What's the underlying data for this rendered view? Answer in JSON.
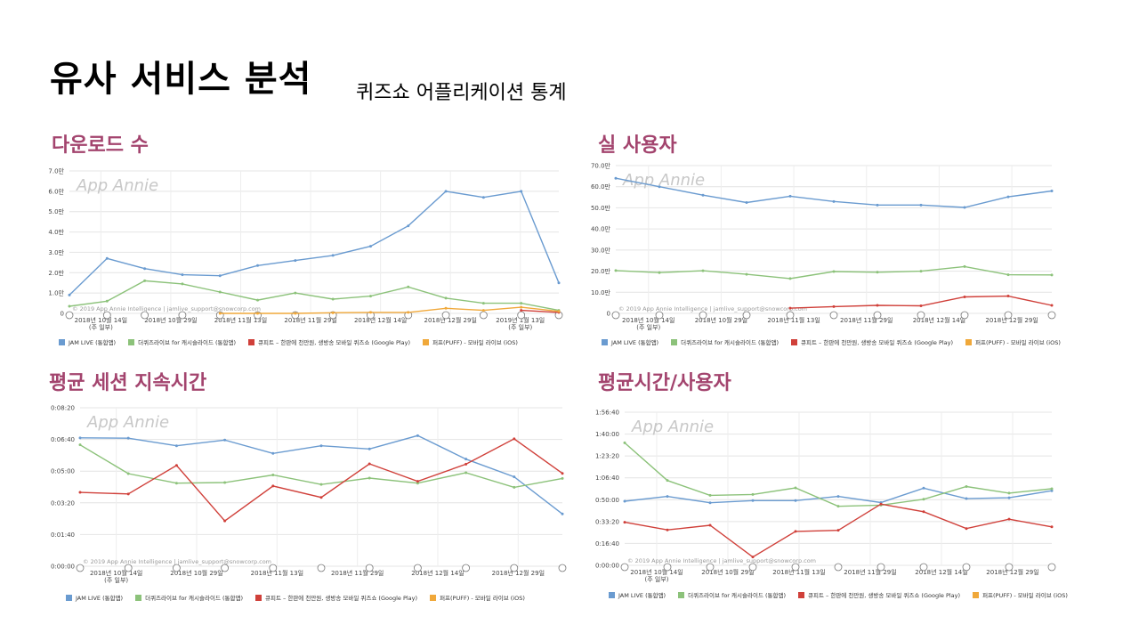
{
  "header": {
    "title": "유사 서비스 분석",
    "subtitle": "퀴즈쇼 어플리케이션 통계"
  },
  "common": {
    "watermark": "App Annie",
    "copyright": "© 2019 App Annie Intelligence | jamlive_support@snowcorp.com",
    "colors": {
      "JAM LIVE (통합앱)": "#6a9bd0",
      "더퀴즈라이브 for 캐시슬라이드 (통합앱)": "#8cc27a",
      "큐피트 – 한판에 천만원, 생방송 모바일 퀴즈쇼 (Google Play)": "#d0403a",
      "퍼프(PUFF) - 모바일 라이브 (iOS)": "#f0a83a"
    }
  },
  "sections": {
    "downloads": "다운로드 수",
    "active_users": "실 사용자",
    "session": "평균 세션 지속시간",
    "time_per_user": "평균시간/사용자"
  },
  "chart_data": [
    {
      "id": "downloads",
      "type": "line",
      "title": "다운로드 수",
      "ylim": [
        0,
        70000
      ],
      "yticks": [
        "0",
        "1.0만",
        "2.0만",
        "3.0만",
        "4.0만",
        "5.0만",
        "6.0만",
        "7.0만"
      ],
      "xticks": [
        "2018년 10월 14일\n(주 일부)",
        "2018년 10월 29일",
        "2018년 11월 13일",
        "2018년 11월 29일",
        "2018년 12월 14일",
        "2018년 12월 29일",
        "2019년 1월 13일\n(주 일부)"
      ],
      "grid": true,
      "legend": "bottom",
      "series": [
        {
          "name": "JAM LIVE (통합앱)",
          "values": [
            9000,
            27000,
            22000,
            19000,
            18500,
            23500,
            26000,
            28500,
            33000,
            43000,
            60000,
            57000,
            60000,
            15000
          ]
        },
        {
          "name": "더퀴즈라이브 for 캐시슬라이드 (통합앱)",
          "values": [
            3500,
            6000,
            16000,
            14500,
            10500,
            6500,
            10000,
            7000,
            8500,
            13000,
            7500,
            5000,
            5000,
            1500
          ]
        },
        {
          "name": "큐피트 – 한판에 천만원, 생방송 모바일 퀴즈쇼 (Google Play)",
          "values": [
            null,
            null,
            null,
            null,
            null,
            null,
            null,
            null,
            null,
            null,
            null,
            null,
            1500,
            500
          ]
        },
        {
          "name": "퍼프(PUFF) - 모바일 라이브 (iOS)",
          "values": [
            null,
            null,
            null,
            null,
            0,
            0,
            0,
            300,
            500,
            500,
            2500,
            1500,
            3000,
            1000
          ]
        }
      ]
    },
    {
      "id": "active_users",
      "type": "line",
      "title": "실 사용자",
      "ylim": [
        0,
        700000
      ],
      "yticks": [
        "0",
        "10.0만",
        "20.0만",
        "30.0만",
        "40.0만",
        "50.0만",
        "60.0만",
        "70.0만"
      ],
      "xticks": [
        "2018년 10월 14일\n(주 일부)",
        "2018년 10월 29일",
        "2018년 11월 13일",
        "2018년 11월 29일",
        "2018년 12월 14일",
        "2018년 12월 29일"
      ],
      "grid": true,
      "legend": "bottom",
      "series": [
        {
          "name": "JAM LIVE (통합앱)",
          "values": [
            640000,
            600000,
            560000,
            525000,
            555000,
            530000,
            513000,
            513000,
            502000,
            552000,
            580000
          ]
        },
        {
          "name": "더퀴즈라이브 for 캐시슬라이드 (통합앱)",
          "values": [
            203000,
            193000,
            202000,
            185000,
            165000,
            198000,
            195000,
            200000,
            222000,
            183000,
            182000
          ]
        },
        {
          "name": "큐피트 – 한판에 천만원, 생방송 모바일 퀴즈쇼 (Google Play)",
          "values": [
            null,
            null,
            null,
            null,
            25000,
            32000,
            38000,
            36000,
            78000,
            82000,
            38000
          ]
        },
        {
          "name": "퍼프(PUFF) - 모바일 라이브 (iOS)",
          "values": [
            null,
            null,
            null,
            null,
            null,
            null,
            null,
            null,
            null,
            null,
            null
          ]
        }
      ]
    },
    {
      "id": "session",
      "type": "line",
      "title": "평균 세션 지속시간",
      "ylim": [
        0,
        500
      ],
      "yticks": [
        "0:00:00",
        "0:01:40",
        "0:03:20",
        "0:05:00",
        "0:06:40",
        "0:08:20"
      ],
      "xticks": [
        "2018년 10월 14일\n(주 일부)",
        "2018년 10월 29일",
        "2018년 11월 13일",
        "2018년 11월 29일",
        "2018년 12월 14일",
        "2018년 12월 29일"
      ],
      "grid": true,
      "legend": "bottom",
      "series": [
        {
          "name": "JAM LIVE (통합앱)",
          "values": [
            405,
            404,
            380,
            398,
            356,
            380,
            370,
            412,
            338,
            282,
            165
          ]
        },
        {
          "name": "더퀴즈라이브 for 캐시슬라이드 (통합앱)",
          "values": [
            383,
            292,
            262,
            264,
            288,
            258,
            278,
            262,
            295,
            249,
            277
          ]
        },
        {
          "name": "큐피트 – 한판에 천만원, 생방송 모바일 퀴즈쇼 (Google Play)",
          "values": [
            233,
            228,
            318,
            143,
            253,
            217,
            323,
            268,
            322,
            402,
            293
          ]
        },
        {
          "name": "퍼프(PUFF) - 모바일 라이브 (iOS)",
          "values": [
            null,
            null,
            null,
            null,
            null,
            null,
            null,
            null,
            null,
            null,
            null
          ]
        }
      ]
    },
    {
      "id": "time_per_user",
      "type": "line",
      "title": "평균시간/사용자",
      "ylim": [
        0,
        7000
      ],
      "yticks": [
        "0:00:00",
        "0:16:40",
        "0:33:20",
        "0:50:00",
        "1:06:40",
        "1:23:20",
        "1:40:00",
        "1:56:40"
      ],
      "xticks": [
        "2018년 10월 14일\n(주 일부)",
        "2018년 10월 29일",
        "2018년 11월 13일",
        "2018년 11월 29일",
        "2018년 12월 14일",
        "2018년 12월 29일"
      ],
      "grid": true,
      "legend": "bottom",
      "series": [
        {
          "name": "JAM LIVE (통합앱)",
          "values": [
            2930,
            3150,
            2860,
            2960,
            2960,
            3150,
            2870,
            3530,
            3050,
            3090,
            3410
          ]
        },
        {
          "name": "더퀴즈라이브 for 캐시슬라이드 (통합앱)",
          "values": [
            5600,
            3880,
            3200,
            3240,
            3540,
            2700,
            2750,
            3020,
            3600,
            3300,
            3500
          ]
        },
        {
          "name": "큐피트 – 한판에 천만원, 생방송 모바일 퀴즈쇼 (Google Play)",
          "values": [
            1970,
            1620,
            1830,
            380,
            1550,
            1600,
            2800,
            2450,
            1680,
            2110,
            1760
          ]
        },
        {
          "name": "퍼프(PUFF) - 모바일 라이브 (iOS)",
          "values": [
            null,
            null,
            null,
            null,
            null,
            null,
            null,
            null,
            null,
            null,
            null
          ]
        }
      ]
    }
  ]
}
